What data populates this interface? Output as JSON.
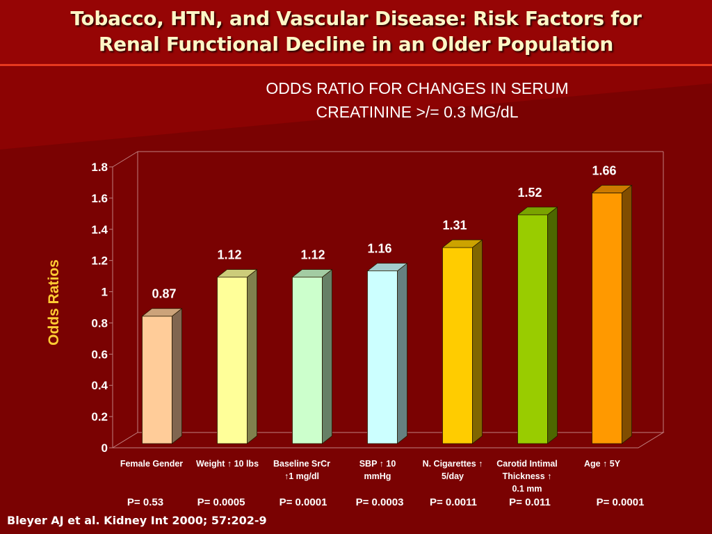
{
  "slide": {
    "title": "Tobacco, HTN, and Vascular Disease: Risk Factors for\nRenal Functional Decline in an Older Population",
    "citation": "Bleyer AJ et al. Kidney Int 2000; 57:202-9"
  },
  "chart_data": {
    "type": "bar",
    "title": "ODDS RATIO FOR CHANGES IN SERUM\nCREATININE >/= 0.3 MG/dL",
    "ylabel": "Odds Ratios",
    "xlabel": "",
    "ylim": [
      0,
      1.8
    ],
    "yticks": [
      "0",
      "0.2",
      "0.4",
      "0.6",
      "0.8",
      "1",
      "1.2",
      "1.4",
      "1.6",
      "1.8"
    ],
    "grid": false,
    "legend": "none",
    "categories": [
      "Female Gender",
      "Weight ↑ 10 lbs",
      "Baseline SrCr ↑1 mg/dl",
      "SBP ↑ 10 mmHg",
      "N. Cigarettes ↑ 5/day",
      "Carotid Intimal Thickness ↑ 0.1 mm",
      "Age ↑ 5Y"
    ],
    "category_lines": [
      [
        "Female Gender"
      ],
      [
        "Weight ↑ 10 lbs"
      ],
      [
        "Baseline SrCr",
        "↑1 mg/dl"
      ],
      [
        "SBP ↑ 10",
        "mmHg"
      ],
      [
        "N. Cigarettes ↑",
        "5/day"
      ],
      [
        "Carotid Intimal",
        "Thickness ↑",
        "0.1 mm"
      ],
      [
        "Age ↑ 5Y"
      ]
    ],
    "values": [
      0.87,
      1.12,
      1.12,
      1.16,
      1.31,
      1.52,
      1.66
    ],
    "value_labels": [
      "0.87",
      "1.12",
      "1.12",
      "1.16",
      "1.31",
      "1.52",
      "1.66"
    ],
    "p_values": [
      "P= 0.53",
      "P= 0.0005",
      "P= 0.0001",
      "P= 0.0003",
      "P= 0.0011",
      "P= 0.011",
      "P= 0.0001"
    ],
    "colors": [
      {
        "front": "#ffcc99",
        "side": "#806650",
        "top": "#cca37a"
      },
      {
        "front": "#ffff99",
        "side": "#80804d",
        "top": "#cccc7a"
      },
      {
        "front": "#ccffcc",
        "side": "#668066",
        "top": "#a3cca3"
      },
      {
        "front": "#ccffff",
        "side": "#668080",
        "top": "#a3cccc"
      },
      {
        "front": "#ffcc00",
        "side": "#806600",
        "top": "#cca300"
      },
      {
        "front": "#99cc00",
        "side": "#4d6600",
        "top": "#7aa300"
      },
      {
        "front": "#ff9900",
        "side": "#804d00",
        "top": "#cc7a00"
      }
    ],
    "axis_color": "#c08080"
  }
}
